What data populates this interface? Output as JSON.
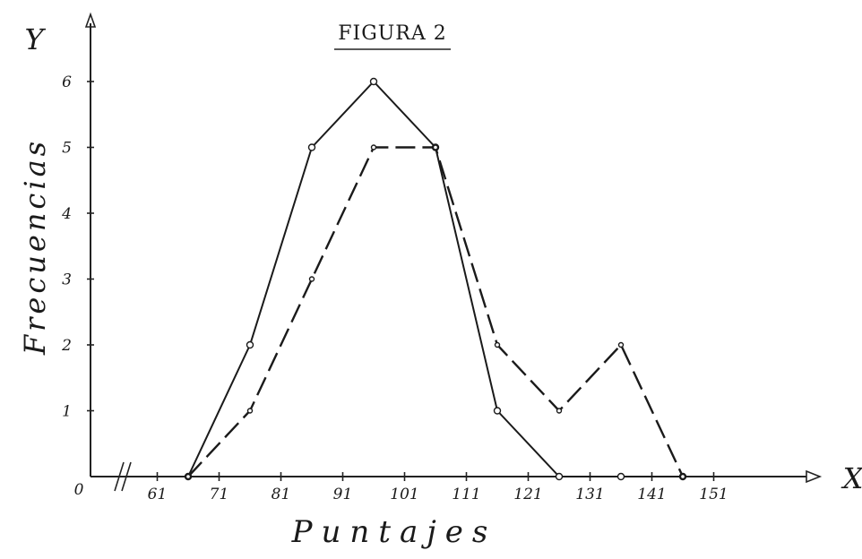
{
  "chart_data": {
    "type": "line",
    "title": "FIGURA 2",
    "xlabel": "Puntajes",
    "ylabel": "Frecuencias",
    "x_axis_letter": "X",
    "y_axis_letter": "Y",
    "origin_label": "0",
    "x_tick_labels": [
      "61",
      "71",
      "81",
      "91",
      "101",
      "111",
      "121",
      "131",
      "141",
      "151"
    ],
    "x_ticks": [
      61,
      71,
      81,
      91,
      101,
      111,
      121,
      131,
      141,
      151
    ],
    "y_ticks": [
      1,
      2,
      3,
      4,
      5,
      6
    ],
    "xlim": [
      66,
      166
    ],
    "ylim": [
      0,
      6.5
    ],
    "grid": false,
    "series": [
      {
        "style": "solid",
        "x": [
          66,
          76,
          86,
          96,
          106,
          116,
          126,
          136,
          146
        ],
        "y": [
          0,
          2,
          5,
          6,
          5,
          1,
          0,
          0,
          0
        ]
      },
      {
        "style": "dashed",
        "x": [
          66,
          76,
          86,
          96,
          106,
          116,
          126,
          136,
          146
        ],
        "y": [
          0,
          1,
          3,
          5,
          5,
          2,
          1,
          2,
          0
        ]
      }
    ]
  }
}
